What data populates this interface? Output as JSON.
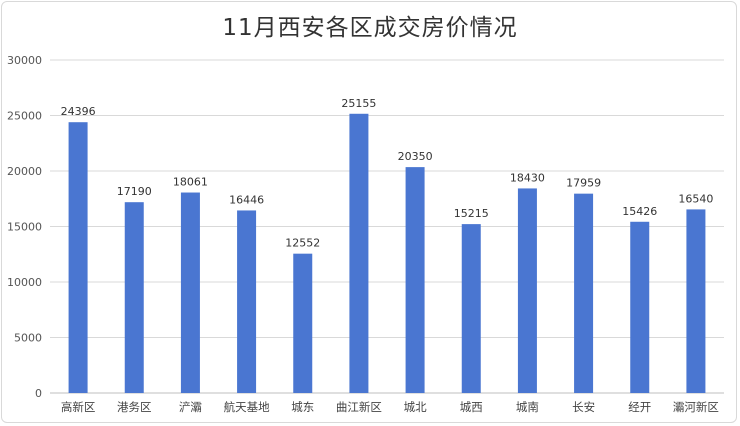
{
  "chart_data": {
    "type": "bar",
    "title": "11月西安各区成交房价情况",
    "xlabel": "",
    "ylabel": "",
    "categories": [
      "高新区",
      "港务区",
      "浐灞",
      "航天基地",
      "城东",
      "曲江新区",
      "城北",
      "城西",
      "城南",
      "长安",
      "经开",
      "灞河新区"
    ],
    "values": [
      24396,
      17190,
      18061,
      16446,
      12552,
      25155,
      20350,
      15215,
      18430,
      17959,
      15426,
      16540
    ],
    "ylim": [
      0,
      30000
    ],
    "yticks": [
      0,
      5000,
      10000,
      15000,
      20000,
      25000,
      30000
    ],
    "bar_color": "#4a76d1",
    "grid": true,
    "legend": "none",
    "data_labels": true
  }
}
